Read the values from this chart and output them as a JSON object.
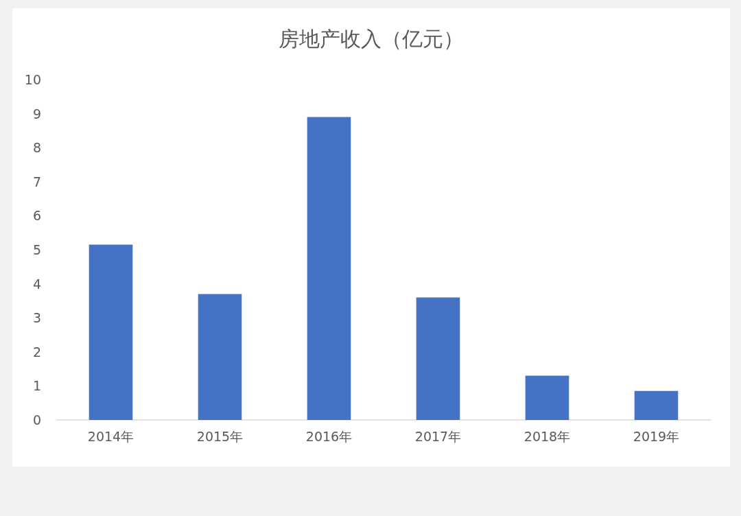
{
  "chart_data": {
    "type": "bar",
    "title": "房地产收入（亿元）",
    "categories": [
      "2014年",
      "2015年",
      "2016年",
      "2017年",
      "2018年",
      "2019年"
    ],
    "values": [
      5.15,
      3.7,
      8.9,
      3.6,
      1.3,
      0.85
    ],
    "color": "#4472c4",
    "ylim": [
      0,
      10
    ],
    "yticks": [
      0,
      1,
      2,
      3,
      4,
      5,
      6,
      7,
      8,
      9,
      10
    ],
    "grid": false
  }
}
